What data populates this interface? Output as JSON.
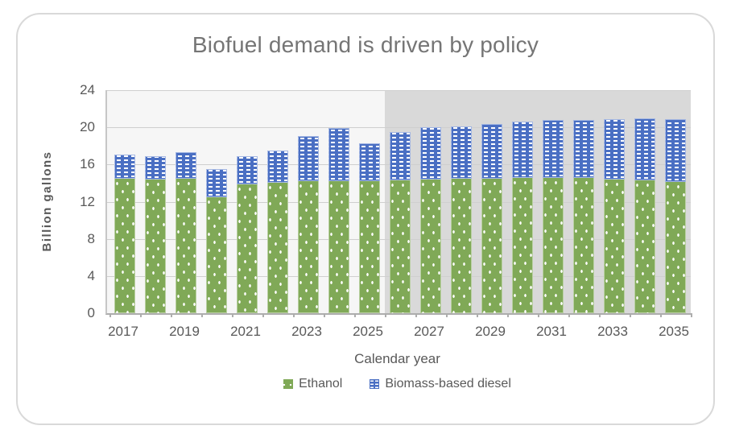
{
  "chart_data": {
    "type": "bar",
    "stacked": true,
    "title": "Biofuel demand is driven by policy",
    "xlabel": "Calendar year",
    "ylabel": "Billion gallons",
    "ylim": [
      0,
      24
    ],
    "y_ticks": [
      0,
      4,
      8,
      12,
      16,
      20,
      24
    ],
    "grid": true,
    "legend_position": "bottom",
    "categories": [
      2017,
      2018,
      2019,
      2020,
      2021,
      2022,
      2023,
      2024,
      2025,
      2026,
      2027,
      2028,
      2029,
      2030,
      2031,
      2032,
      2033,
      2034,
      2035
    ],
    "x_tick_labels_shown": [
      "2017",
      "2019",
      "2021",
      "2023",
      "2025",
      "2027",
      "2029",
      "2031",
      "2033",
      "2035"
    ],
    "series": [
      {
        "name": "Ethanol",
        "color": "#80a957",
        "pattern": "white-dots",
        "values": [
          14.5,
          14.4,
          14.5,
          12.5,
          13.9,
          14.0,
          14.2,
          14.2,
          14.2,
          14.3,
          14.4,
          14.5,
          14.5,
          14.6,
          14.6,
          14.6,
          14.4,
          14.3,
          14.1
        ]
      },
      {
        "name": "Biomass-based diesel",
        "color": "#4a6fc3",
        "pattern": "white-dashes",
        "values": [
          2.6,
          2.5,
          2.8,
          3.0,
          3.0,
          3.5,
          4.9,
          5.7,
          4.1,
          5.2,
          5.6,
          5.6,
          5.9,
          6.0,
          6.2,
          6.2,
          6.5,
          6.7,
          6.8
        ]
      }
    ],
    "annotations": {
      "shaded_projection_region": "darker background from after 2025 through 2035"
    }
  },
  "legend": [
    {
      "label": "Ethanol",
      "swatch": "ethanol-swatch"
    },
    {
      "label": "Biomass-based diesel",
      "swatch": "diesel-swatch"
    }
  ],
  "colors": {
    "ethanol_green": "#80a957",
    "diesel_blue": "#4a6fc3",
    "plot_bg_history": "#f6f6f6",
    "plot_bg_projection": "#d9d9d9",
    "gridline": "#cfcfcf",
    "axis_line": "#adadad",
    "tick_text": "#595959",
    "title_text": "#757575",
    "card_border": "#d9d9d9"
  }
}
